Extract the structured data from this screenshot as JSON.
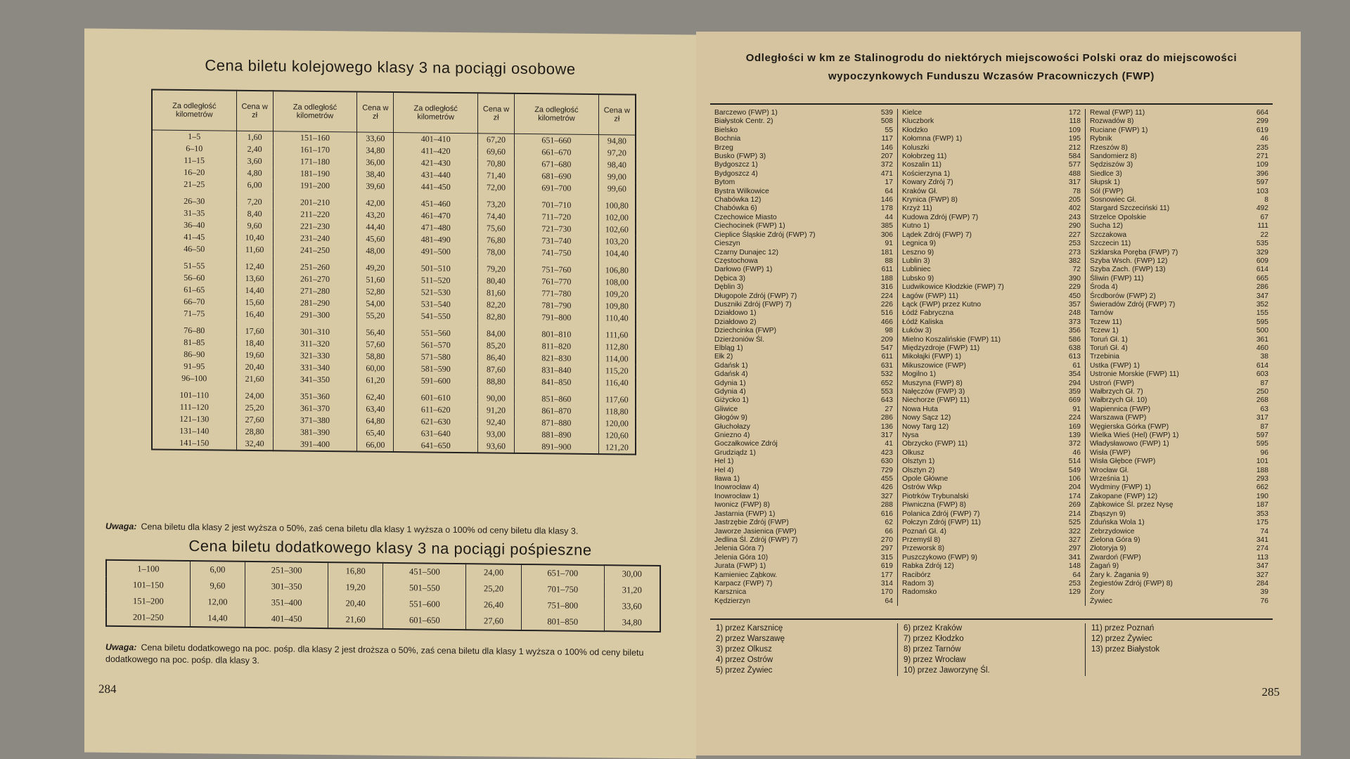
{
  "left_page": {
    "title": "Cena biletu kolejowego klasy 3 na pociągi osobowe",
    "fare_table": {
      "headers": [
        "Za odległość kilometrów",
        "Cena w zł",
        "Za odległość kilometrów",
        "Cena w zł",
        "Za odległość kilometrów",
        "Cena w zł",
        "Za odległość kilometrów",
        "Cena w zł"
      ],
      "rows": [
        [
          "1–5",
          "1,60",
          "151–160",
          "33,60",
          "401–410",
          "67,20",
          "651–660",
          "94,80"
        ],
        [
          "6–10",
          "2,40",
          "161–170",
          "34,80",
          "411–420",
          "69,60",
          "661–670",
          "97,20"
        ],
        [
          "11–15",
          "3,60",
          "171–180",
          "36,00",
          "421–430",
          "70,80",
          "671–680",
          "98,40"
        ],
        [
          "16–20",
          "4,80",
          "181–190",
          "38,40",
          "431–440",
          "71,40",
          "681–690",
          "99,00"
        ],
        [
          "21–25",
          "6,00",
          "191–200",
          "39,60",
          "441–450",
          "72,00",
          "691–700",
          "99,60"
        ],
        [
          "26–30",
          "7,20",
          "201–210",
          "42,00",
          "451–460",
          "73,20",
          "701–710",
          "100,80"
        ],
        [
          "31–35",
          "8,40",
          "211–220",
          "43,20",
          "461–470",
          "74,40",
          "711–720",
          "102,00"
        ],
        [
          "36–40",
          "9,60",
          "221–230",
          "44,40",
          "471–480",
          "75,60",
          "721–730",
          "102,60"
        ],
        [
          "41–45",
          "10,40",
          "231–240",
          "45,60",
          "481–490",
          "76,80",
          "731–740",
          "103,20"
        ],
        [
          "46–50",
          "11,60",
          "241–250",
          "48,00",
          "491–500",
          "78,00",
          "741–750",
          "104,40"
        ],
        [
          "51–55",
          "12,40",
          "251–260",
          "49,20",
          "501–510",
          "79,20",
          "751–760",
          "106,80"
        ],
        [
          "56–60",
          "13,60",
          "261–270",
          "51,60",
          "511–520",
          "80,40",
          "761–770",
          "108,00"
        ],
        [
          "61–65",
          "14,40",
          "271–280",
          "52,80",
          "521–530",
          "81,60",
          "771–780",
          "109,20"
        ],
        [
          "66–70",
          "15,60",
          "281–290",
          "54,00",
          "531–540",
          "82,20",
          "781–790",
          "109,80"
        ],
        [
          "71–75",
          "16,40",
          "291–300",
          "55,20",
          "541–550",
          "82,80",
          "791–800",
          "110,40"
        ],
        [
          "76–80",
          "17,60",
          "301–310",
          "56,40",
          "551–560",
          "84,00",
          "801–810",
          "111,60"
        ],
        [
          "81–85",
          "18,40",
          "311–320",
          "57,60",
          "561–570",
          "85,20",
          "811–820",
          "112,80"
        ],
        [
          "86–90",
          "19,60",
          "321–330",
          "58,80",
          "571–580",
          "86,40",
          "821–830",
          "114,00"
        ],
        [
          "91–95",
          "20,40",
          "331–340",
          "60,00",
          "581–590",
          "87,60",
          "831–840",
          "115,20"
        ],
        [
          "96–100",
          "21,60",
          "341–350",
          "61,20",
          "591–600",
          "88,80",
          "841–850",
          "116,40"
        ],
        [
          "101–110",
          "24,00",
          "351–360",
          "62,40",
          "601–610",
          "90,00",
          "851–860",
          "117,60"
        ],
        [
          "111–120",
          "25,20",
          "361–370",
          "63,40",
          "611–620",
          "91,20",
          "861–870",
          "118,80"
        ],
        [
          "121–130",
          "27,60",
          "371–380",
          "64,80",
          "621–630",
          "92,40",
          "871–880",
          "120,00"
        ],
        [
          "131–140",
          "28,80",
          "381–390",
          "65,40",
          "631–640",
          "93,00",
          "881–890",
          "120,60"
        ],
        [
          "141–150",
          "32,40",
          "391–400",
          "66,00",
          "641–650",
          "93,60",
          "891–900",
          "121,20"
        ]
      ]
    },
    "note_label": "Uwaga:",
    "note": "Cena biletu dla klasy 2 jest wyższa o 50%, zaś cena biletu dla klasy 1 wyższa o 100% od ceny biletu dla klasy 3.",
    "supplement_title": "Cena biletu dodatkowego klasy 3 na pociągi pośpieszne",
    "supplement_table": {
      "rows": [
        [
          "1–100",
          "6,00",
          "251–300",
          "16,80",
          "451–500",
          "24,00",
          "651–700",
          "30,00"
        ],
        [
          "101–150",
          "9,60",
          "301–350",
          "19,20",
          "501–550",
          "25,20",
          "701–750",
          "31,20"
        ],
        [
          "151–200",
          "12,00",
          "351–400",
          "20,40",
          "551–600",
          "26,40",
          "751–800",
          "33,60"
        ],
        [
          "201–250",
          "14,40",
          "401–450",
          "21,60",
          "601–650",
          "27,60",
          "801–850",
          "34,80"
        ]
      ]
    },
    "supplement_note_label": "Uwaga:",
    "supplement_note": "Cena biletu dodatkowego na poc. pośp. dla klasy 2 jest droższa o 50%, zaś cena biletu dla klasy 1 wyższa o 100% od ceny biletu dodatkowego na poc. pośp. dla klasy 3.",
    "page_number": "284"
  },
  "right_page": {
    "title": "Odległości w km ze Stalinogrodu do niektórych miejscowości Polski oraz do miejscowości wypoczynkowych Funduszu Wczasów Pracowniczych (FWP)",
    "columns": [
      [
        [
          "Barczewo (FWP) 1)",
          "539"
        ],
        [
          "Białystok Centr. 2)",
          "508"
        ],
        [
          "Bielsko",
          "55"
        ],
        [
          "Bochnia",
          "117"
        ],
        [
          "Brzeg",
          "146"
        ],
        [
          "Busko (FWP) 3)",
          "207"
        ],
        [
          "Bydgoszcz 1)",
          "372"
        ],
        [
          "Bydgoszcz 4)",
          "471"
        ],
        [
          "Bytom",
          "17"
        ],
        [
          "Bystra Wilkowice",
          "64"
        ],
        [
          "Chabówka 12)",
          "146"
        ],
        [
          "Chabówka 6)",
          "178"
        ],
        [
          "Czechowice Miasto",
          "44"
        ],
        [
          "Ciechocinek (FWP) 1)",
          "385"
        ],
        [
          "Cieplice Śląskie Zdrój (FWP) 7)",
          "306"
        ],
        [
          "Cieszyn",
          "91"
        ],
        [
          "Czarny Dunajec 12)",
          "181"
        ],
        [
          "Częstochowa",
          "88"
        ],
        [
          "Darłowo (FWP) 1)",
          "611"
        ],
        [
          "Dębica 3)",
          "188"
        ],
        [
          "Dęblin 3)",
          "316"
        ],
        [
          "Długopole Zdrój (FWP) 7)",
          "224"
        ],
        [
          "Duszniki Zdrój (FWP) 7)",
          "226"
        ],
        [
          "Działdowo 1)",
          "516"
        ],
        [
          "Działdowo 2)",
          "466"
        ],
        [
          "Dziechcinka (FWP)",
          "98"
        ],
        [
          "Dzierżoniów Śl.",
          "209"
        ],
        [
          "Elbląg 1)",
          "547"
        ],
        [
          "Ełk 2)",
          "611"
        ],
        [
          "Gdańsk 1)",
          "631"
        ],
        [
          "Gdańsk 4)",
          "532"
        ],
        [
          "Gdynia 1)",
          "652"
        ],
        [
          "Gdynia 4)",
          "553"
        ],
        [
          "Giżycko 1)",
          "643"
        ],
        [
          "Gliwice",
          "27"
        ],
        [
          "Głogów 9)",
          "286"
        ],
        [
          "Głuchołazy",
          "136"
        ],
        [
          "Gniezno 4)",
          "317"
        ],
        [
          "Goczałkowice Zdrój",
          "41"
        ],
        [
          "Grudziądz 1)",
          "423"
        ],
        [
          "Hel 1)",
          "630"
        ],
        [
          "Hel 4)",
          "729"
        ],
        [
          "Iława 1)",
          "455"
        ],
        [
          "Inowrocław 4)",
          "426"
        ],
        [
          "Inowrocław 1)",
          "327"
        ],
        [
          "Iwonicz (FWP) 8)",
          "288"
        ],
        [
          "Jastarnia (FWP) 1)",
          "616"
        ],
        [
          "Jastrzębie Zdrój (FWP)",
          "62"
        ],
        [
          "Jaworze Jasienica (FWP)",
          "66"
        ],
        [
          "Jedlina Śl. Zdrój (FWP) 7)",
          "270"
        ],
        [
          "Jelenia Góra 7)",
          "297"
        ],
        [
          "Jelenia Góra 10)",
          "315"
        ],
        [
          "Jurata (FWP) 1)",
          "619"
        ],
        [
          "Kamieniec Ząbkow.",
          "177"
        ],
        [
          "Karpacz (FWP) 7)",
          "314"
        ],
        [
          "Karsznica",
          "170"
        ],
        [
          "Kędzierzyn",
          "64"
        ]
      ],
      [
        [
          "Kielce",
          "172"
        ],
        [
          "Kluczbork",
          "118"
        ],
        [
          "Kłodzko",
          "109"
        ],
        [
          "Kołomna (FWP) 1)",
          "195"
        ],
        [
          "Koluszki",
          "212"
        ],
        [
          "Kołobrzeg 11)",
          "584"
        ],
        [
          "Koszalin 11)",
          "577"
        ],
        [
          "Kościerzyna 1)",
          "488"
        ],
        [
          "Kowary Zdrój 7)",
          "317"
        ],
        [
          "Kraków Gł.",
          "78"
        ],
        [
          "Krynica (FWP) 8)",
          "205"
        ],
        [
          "Krzyż 11)",
          "402"
        ],
        [
          "Kudowa Zdrój (FWP) 7)",
          "243"
        ],
        [
          "Kutno 1)",
          "290"
        ],
        [
          "Lądek Zdrój (FWP) 7)",
          "227"
        ],
        [
          "Legnica 9)",
          "253"
        ],
        [
          "Leszno 9)",
          "273"
        ],
        [
          "Lublin 3)",
          "382"
        ],
        [
          "Lubliniec",
          "72"
        ],
        [
          "Lubsko 9)",
          "390"
        ],
        [
          "Ludwikowice Kłodzkie (FWP) 7)",
          "229"
        ],
        [
          "Łagów (FWP) 11)",
          "450"
        ],
        [
          "Łąck (FWP) przez Kutno",
          "357"
        ],
        [
          "Łódź Fabryczna",
          "248"
        ],
        [
          "Łódź Kaliska",
          "373"
        ],
        [
          "Łuków 3)",
          "356"
        ],
        [
          "Mielno Koszalińskie (FWP) 11)",
          "586"
        ],
        [
          "Międzyzdroje (FWP) 11)",
          "638"
        ],
        [
          "Mikołajki (FWP) 1)",
          "613"
        ],
        [
          "Mikuszowice (FWP)",
          "61"
        ],
        [
          "Mogilno 1)",
          "354"
        ],
        [
          "Muszyna (FWP) 8)",
          "294"
        ],
        [
          "Nałęczów (FWP) 3)",
          "359"
        ],
        [
          "Niechorze (FWP) 11)",
          "669"
        ],
        [
          "Nowa Huta",
          "91"
        ],
        [
          "Nowy Sącz 12)",
          "224"
        ],
        [
          "Nowy Targ 12)",
          "169"
        ],
        [
          "Nysa",
          "139"
        ],
        [
          "Obrzycko (FWP) 11)",
          "372"
        ],
        [
          "Olkusz",
          "46"
        ],
        [
          "Olsztyn 1)",
          "514"
        ],
        [
          "Olsztyn 2)",
          "549"
        ],
        [
          "Opole Główne",
          "106"
        ],
        [
          "Ostrów Wkp",
          "204"
        ],
        [
          "Piotrków Trybunalski",
          "174"
        ],
        [
          "Piwniczna (FWP) 8)",
          "269"
        ],
        [
          "Polanica Zdrój (FWP) 7)",
          "214"
        ],
        [
          "Połczyn Zdrój (FWP) 11)",
          "525"
        ],
        [
          "Poznań Gł. 4)",
          "322"
        ],
        [
          "Przemyśl 8)",
          "327"
        ],
        [
          "Przeworsk 8)",
          "297"
        ],
        [
          "Puszczykowo (FWP) 9)",
          "341"
        ],
        [
          "Rabka Zdrój 12)",
          "148"
        ],
        [
          "Racibórz",
          "64"
        ],
        [
          "Radom 3)",
          "253"
        ],
        [
          "Radomsko",
          "129"
        ]
      ],
      [
        [
          "Rewal (FWP) 11)",
          "664"
        ],
        [
          "Rozwadów 8)",
          "299"
        ],
        [
          "Ruciane (FWP) 1)",
          "619"
        ],
        [
          "Rybnik",
          "46"
        ],
        [
          "Rzeszów 8)",
          "235"
        ],
        [
          "Sandomierz 8)",
          "271"
        ],
        [
          "Sędziszów 3)",
          "109"
        ],
        [
          "Siedlce 3)",
          "396"
        ],
        [
          "Słupsk 1)",
          "597"
        ],
        [
          "Sól (FWP)",
          "103"
        ],
        [
          "Sosnowiec Gł.",
          "8"
        ],
        [
          "Stargard Szczeciński 11)",
          "492"
        ],
        [
          "Strzelce Opolskie",
          "67"
        ],
        [
          "Sucha 12)",
          "111"
        ],
        [
          "Szczakowa",
          "22"
        ],
        [
          "Szczecin 11)",
          "535"
        ],
        [
          "Szklarska Poręba (FWP) 7)",
          "329"
        ],
        [
          "Szyba Wsch. (FWP) 12)",
          "609"
        ],
        [
          "Szyba Zach. (FWP) 13)",
          "614"
        ],
        [
          "Śliwin (FWP) 11)",
          "665"
        ],
        [
          "Środa 4)",
          "286"
        ],
        [
          "Śrcdborów (FWP) 2)",
          "347"
        ],
        [
          "Świeradów Zdrój (FWP) 7)",
          "352"
        ],
        [
          "Tarnów",
          "155"
        ],
        [
          "Tczew 11)",
          "595"
        ],
        [
          "Tczew 1)",
          "500"
        ],
        [
          "Toruń Gł. 1)",
          "361"
        ],
        [
          "Toruń Gł. 4)",
          "460"
        ],
        [
          "Trzebinia",
          "38"
        ],
        [
          "Ustka (FWP) 1)",
          "614"
        ],
        [
          "Ustronie Morskie (FWP) 11)",
          "603"
        ],
        [
          "Ustroń (FWP)",
          "87"
        ],
        [
          "Wałbrzych Gł. 7)",
          "250"
        ],
        [
          "Wałbrzych Gł. 10)",
          "268"
        ],
        [
          "Wapiennica (FWP)",
          "63"
        ],
        [
          "Warszawa (FWP)",
          "317"
        ],
        [
          "Węgierska Górka (FWP)",
          "87"
        ],
        [
          "Wielka Wieś (Hel) (FWP) 1)",
          "597"
        ],
        [
          "Władysławowo (FWP) 1)",
          "595"
        ],
        [
          "Wisła (FWP)",
          "96"
        ],
        [
          "Wisła Głębce (FWP)",
          "101"
        ],
        [
          "Wrocław Gł.",
          "188"
        ],
        [
          "Września 1)",
          "293"
        ],
        [
          "Wydminy (FWP) 1)",
          "662"
        ],
        [
          "Zakopane (FWP) 12)",
          "190"
        ],
        [
          "Ząbkowice Śl. przez Nysę",
          "187"
        ],
        [
          "Zbąszyn 9)",
          "353"
        ],
        [
          "Zduńska Wola 1)",
          "175"
        ],
        [
          "Zebrzydowice",
          "74"
        ],
        [
          "Zielona Góra 9)",
          "341"
        ],
        [
          "Złotoryja 9)",
          "274"
        ],
        [
          "Zwardoń (FWP)",
          "113"
        ],
        [
          "Żagań 9)",
          "347"
        ],
        [
          "Żary k. Żagania 9)",
          "327"
        ],
        [
          "Żegiestów Zdrój (FWP) 8)",
          "284"
        ],
        [
          "Żory",
          "39"
        ],
        [
          "Żywiec",
          "76"
        ]
      ]
    ],
    "footnotes": [
      [
        "1) przez Karsznicę",
        "2) przez Warszawę",
        "3) przez Olkusz",
        "4) przez Ostrów",
        "5) przez Żywiec"
      ],
      [
        "6) przez Kraków",
        "7) przez Kłodzko",
        "8) przez Tarnów",
        "9) przez Wrocław",
        "10) przez Jaworzynę Śl."
      ],
      [
        "11) przez Poznań",
        "12) przez Żywiec",
        "13) przez Białystok"
      ]
    ],
    "page_number": "285"
  }
}
